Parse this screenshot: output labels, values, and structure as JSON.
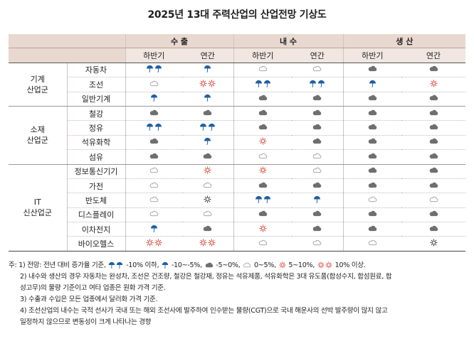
{
  "title": "2025년 13대 주력산업의 산업전망 기상도",
  "headers": {
    "groups": [
      "수 출",
      "내 수",
      "생 산"
    ],
    "sub": [
      "하반기",
      "연간",
      "하반기",
      "연간",
      "하반기",
      "연간"
    ]
  },
  "icon_names": {
    "SR": "heavy-rain-umbrellas-icon",
    "R": "rain-umbrella-icon",
    "CD": "dark-cloud-icon",
    "C": "cloud-icon",
    "S": "sun-icon",
    "SS": "double-sun-icon",
    "SB": "dark-sun-icon"
  },
  "colors": {
    "umbrella": "#1f5fa5",
    "sun": "#d93b2b",
    "dark_cloud": "#6f6f6f",
    "light_cloud": "#9a9a9a",
    "header_bg": "#e8d8d0"
  },
  "groups": [
    {
      "name_line1": "기계",
      "name_line2": "산업군",
      "items": [
        {
          "name": "자동차",
          "values": [
            "SR",
            "R",
            "C",
            "C",
            "CD",
            "CD"
          ]
        },
        {
          "name": "조선",
          "values": [
            "C",
            "SS",
            "SR",
            "SR",
            "R",
            "S"
          ]
        },
        {
          "name": "일반기계",
          "values": [
            "R",
            "R",
            "CD",
            "CD",
            "CD",
            "CD"
          ]
        }
      ]
    },
    {
      "name_line1": "소재",
      "name_line2": "산업군",
      "items": [
        {
          "name": "철강",
          "values": [
            "CD",
            "CD",
            "CD",
            "CD",
            "CD",
            "CD"
          ]
        },
        {
          "name": "정유",
          "values": [
            "SR",
            "SR",
            "CD",
            "CD",
            "CD",
            "CD"
          ]
        },
        {
          "name": "석유화학",
          "values": [
            "CD",
            "R",
            "S",
            "CD",
            "CD",
            "CD"
          ]
        },
        {
          "name": "섬유",
          "values": [
            "CD",
            "CD",
            "C",
            "C",
            "CD",
            "CD"
          ]
        }
      ]
    },
    {
      "name_line1": "IT",
      "name_line2": "신산업군",
      "items": [
        {
          "name": "정보통신기기",
          "values": [
            "C",
            "S",
            "S",
            "C",
            "CD",
            "CD"
          ]
        },
        {
          "name": "가전",
          "values": [
            "C",
            "C",
            "CD",
            "CD",
            "CD",
            "CD"
          ]
        },
        {
          "name": "반도체",
          "values": [
            "C",
            "SB",
            "SR",
            "R",
            "C",
            "C"
          ]
        },
        {
          "name": "디스플레이",
          "values": [
            "C",
            "C",
            "CD",
            "CD",
            "CD",
            "CD"
          ]
        },
        {
          "name": "이차전지",
          "values": [
            "R",
            "CD",
            "S",
            "CD",
            "CD",
            "CD"
          ]
        },
        {
          "name": "바이오헬스",
          "values": [
            "SS",
            "SS",
            "C",
            "C",
            "C",
            "SB"
          ]
        }
      ]
    }
  ],
  "notes": {
    "n1_prefix": "주: 1) 전망: 전년 대비 증가율 기준,",
    "n1_a": "-10% 이하,",
    "n1_b": "-10~-5%,",
    "n1_c": "-5~0%,",
    "n1_d": "0~5%,",
    "n1_e": "5~10%,",
    "n1_f": "10% 이상.",
    "n2_line1": "2) 내수와 생산의 경우 자동차는 완성차, 조선은 건조량, 철강은 철강재, 정유는 석유제품, 석유화학은 3대 유도품(합성수지, 합섬원료, 합",
    "n2_line2": "성고무)의 물량 기준이고 여타 업종은 원화 가격 기준.",
    "n3": "3) 수출과 수입은 모든 업종에서 달러화 가격 기준.",
    "n4_line1": "4) 조선산업의 내수는 국적 선사가 국내 또는 해외 조선사에 발주하여 인수받는 물량(CGT)으로 국내 해운사의 선박 발주량이 많지 않고",
    "n4_line2": "일정하지 않으므로 변동성이 크게 나타나는 경향"
  }
}
